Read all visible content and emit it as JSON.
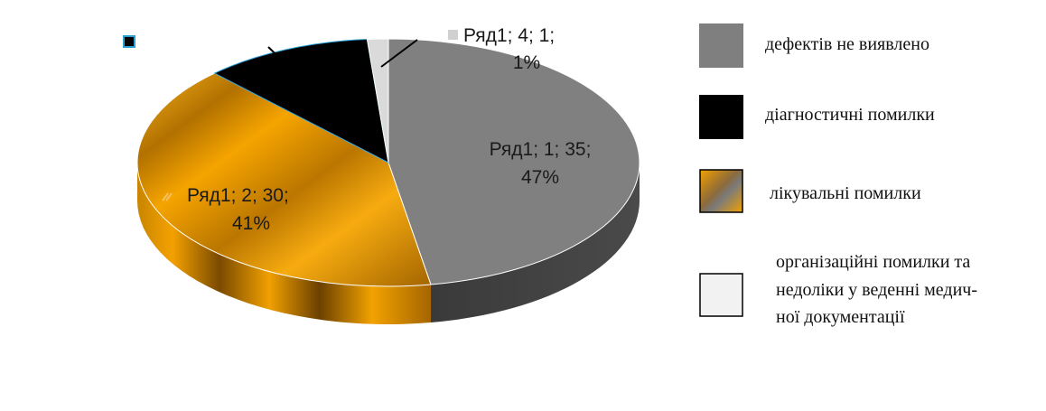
{
  "chart_data": {
    "type": "pie",
    "title": "",
    "series_name": "Ряд1",
    "slices": [
      {
        "index": 1,
        "label": "дефектів не виявлено",
        "value": 35,
        "percent": 47
      },
      {
        "index": 2,
        "label": "лікувальні помилки",
        "value": 30,
        "percent": 41
      },
      {
        "index": 3,
        "label": "діагностичні помилки",
        "value": 8,
        "percent": 11
      },
      {
        "index": 4,
        "label": "організаційні помилки та недоліки у веденні медичної документації",
        "value": 1,
        "percent": 1
      }
    ],
    "data_labels": {
      "s1": {
        "line1": "Ряд1; 1; 35;",
        "line2": "47%"
      },
      "s2": {
        "line1": "Ряд1; 2; 30;",
        "line2": "41%"
      },
      "s4": {
        "line1": "Ряд1; 4; 1;",
        "line2": "1%"
      }
    },
    "legend": {
      "position": "right",
      "items": [
        {
          "lines": [
            "дефектів не виявлено"
          ],
          "color": "#7f7f7f"
        },
        {
          "lines": [
            "діагностичні помилки"
          ],
          "color": "#000000"
        },
        {
          "lines": [
            "лікувальні помилки"
          ],
          "color": "#e69a08"
        },
        {
          "lines": [
            "організаційні помилки та",
            "недоліки у веденні медич-",
            "ної документації"
          ],
          "color": "#f2f2f2"
        }
      ]
    },
    "colors": {
      "s1": "#8a8a8a",
      "s2": "#f0a000",
      "s3": "#000000",
      "s4": "#d9d9d9"
    }
  }
}
